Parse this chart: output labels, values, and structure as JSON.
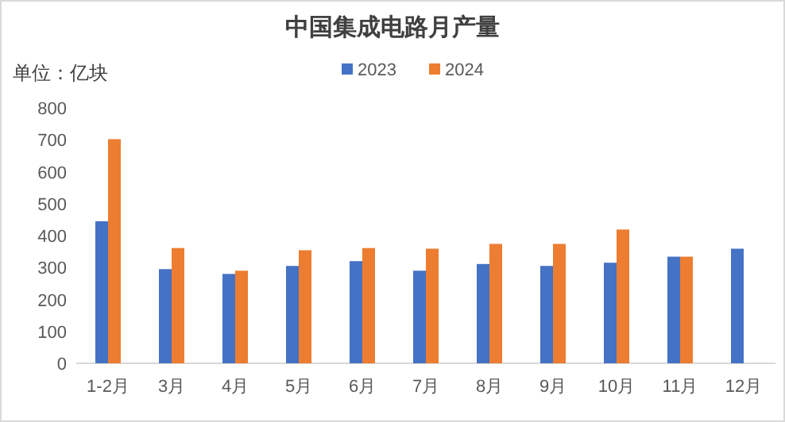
{
  "chart_data": {
    "type": "bar",
    "title": "中国集成电路月产量",
    "ylabel": "单位：亿块",
    "categories": [
      "1-2月",
      "3月",
      "4月",
      "5月",
      "6月",
      "7月",
      "8月",
      "9月",
      "10月",
      "11月",
      "12月"
    ],
    "series": [
      {
        "name": "2023",
        "color": "#4472c4",
        "values": [
          445,
          295,
          280,
          305,
          320,
          290,
          311,
          305,
          315,
          334,
          359
        ]
      },
      {
        "name": "2024",
        "color": "#ed7d31",
        "values": [
          702,
          361,
          290,
          354,
          361,
          359,
          374,
          374,
          419,
          334,
          null
        ]
      }
    ],
    "ylim": [
      0,
      800
    ],
    "yticks": [
      0,
      100,
      200,
      300,
      400,
      500,
      600,
      700,
      800
    ],
    "grid": false,
    "legend": "top"
  }
}
